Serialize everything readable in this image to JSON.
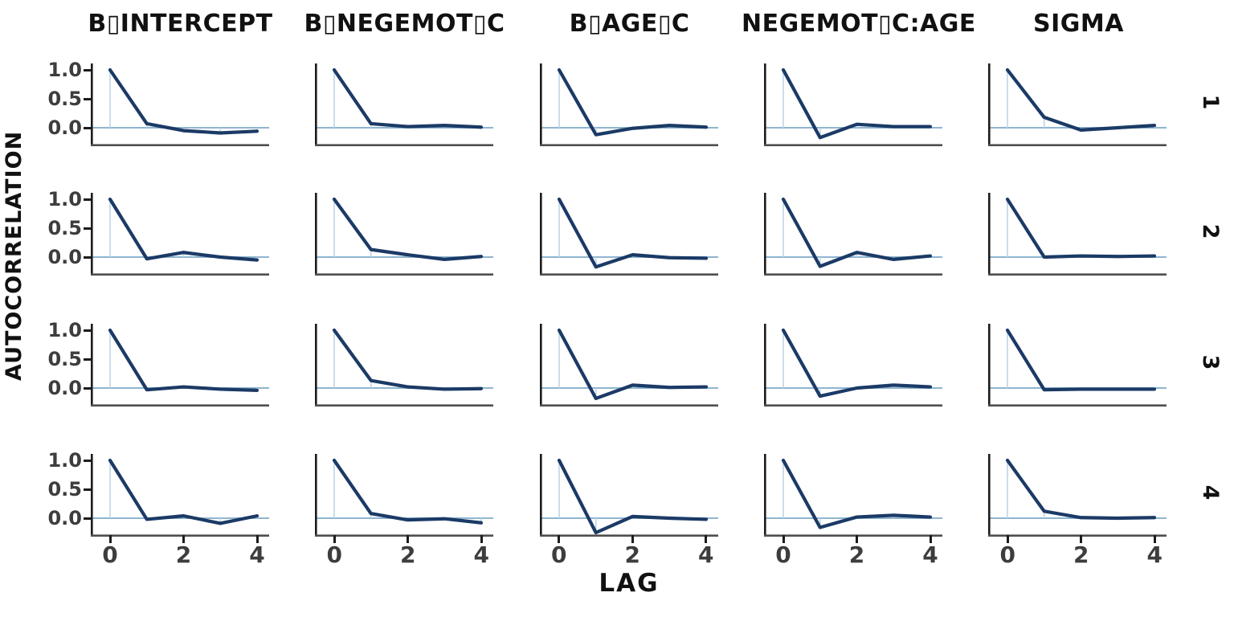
{
  "figure": {
    "ylabel": "AUTOCORRELATION",
    "xlabel": "LAG",
    "y_tick_labels": [
      "1.0",
      "0.5",
      "0.0"
    ],
    "x_tick_labels": [
      "0",
      "2",
      "4"
    ],
    "col_titles": [
      "B▯INTERCEPT",
      "B▯NEGEMOT▯C",
      "B▯AGE▯C",
      "NEGEMOT▯C:AGE",
      "SIGMA"
    ],
    "row_labels": [
      "1",
      "2",
      "3",
      "4"
    ],
    "colors": {
      "acf_line": "#1b3a66",
      "lag_segment": "#bdd5e8",
      "zero_line": "#8fb5cf",
      "y_axis": "#1c1c1c",
      "x_axis": "#4f4f4f",
      "title_text": "#111111",
      "tick_text": "#3d3d3d"
    }
  },
  "chart_data": {
    "type": "line",
    "title": "",
    "xlabel": "LAG",
    "ylabel": "AUTOCORRELATION",
    "x": [
      0,
      1,
      2,
      3,
      4
    ],
    "x_ticks": [
      0,
      2,
      4
    ],
    "y_ticks": [
      1.0,
      0.5,
      0.0
    ],
    "ylim": [
      -0.33,
      1.08
    ],
    "grid": "off",
    "legend": "none",
    "facet_rows": [
      "1",
      "2",
      "3",
      "4"
    ],
    "facet_cols": [
      "B▯INTERCEPT",
      "B▯NEGEMOT▯C",
      "B▯AGE▯C",
      "NEGEMOT▯C:AGE",
      "SIGMA"
    ],
    "description": "Autocorrelation (ACF) of MCMC draws by parameter (columns) and chain (rows 1-4), lags 0-4; light segments drop from each ACF value to zero, light horizontal line marks zero.",
    "parameters": [
      {
        "name": "B▯INTERCEPT",
        "acf_by_chain": [
          [
            1.0,
            0.07,
            -0.05,
            -0.09,
            -0.06
          ],
          [
            1.0,
            -0.03,
            0.08,
            0.0,
            -0.05
          ],
          [
            1.0,
            -0.03,
            0.02,
            -0.02,
            -0.04
          ],
          [
            1.0,
            -0.02,
            0.04,
            -0.09,
            0.04
          ]
        ]
      },
      {
        "name": "B▯NEGEMOT▯C",
        "acf_by_chain": [
          [
            1.0,
            0.07,
            0.02,
            0.04,
            0.01
          ],
          [
            1.0,
            0.13,
            0.04,
            -0.04,
            0.01
          ],
          [
            1.0,
            0.13,
            0.02,
            -0.02,
            -0.01
          ],
          [
            1.0,
            0.08,
            -0.03,
            -0.01,
            -0.08
          ]
        ]
      },
      {
        "name": "B▯AGE▯C",
        "acf_by_chain": [
          [
            1.0,
            -0.12,
            -0.01,
            0.04,
            0.01
          ],
          [
            1.0,
            -0.17,
            0.04,
            -0.01,
            -0.02
          ],
          [
            1.0,
            -0.18,
            0.05,
            0.01,
            0.02
          ],
          [
            1.0,
            -0.25,
            0.03,
            0.0,
            -0.02
          ]
        ]
      },
      {
        "name": "NEGEMOT▯C:AGE",
        "acf_by_chain": [
          [
            1.0,
            -0.17,
            0.06,
            0.02,
            0.02
          ],
          [
            1.0,
            -0.16,
            0.08,
            -0.04,
            0.02
          ],
          [
            1.0,
            -0.14,
            0.0,
            0.05,
            0.02
          ],
          [
            1.0,
            -0.16,
            0.02,
            0.05,
            0.02
          ]
        ]
      },
      {
        "name": "SIGMA",
        "acf_by_chain": [
          [
            1.0,
            0.18,
            -0.04,
            0.0,
            0.04
          ],
          [
            1.0,
            0.0,
            0.02,
            0.01,
            0.02
          ],
          [
            1.0,
            -0.03,
            -0.02,
            -0.02,
            -0.02
          ],
          [
            1.0,
            0.12,
            0.01,
            0.0,
            0.01
          ]
        ]
      }
    ]
  }
}
